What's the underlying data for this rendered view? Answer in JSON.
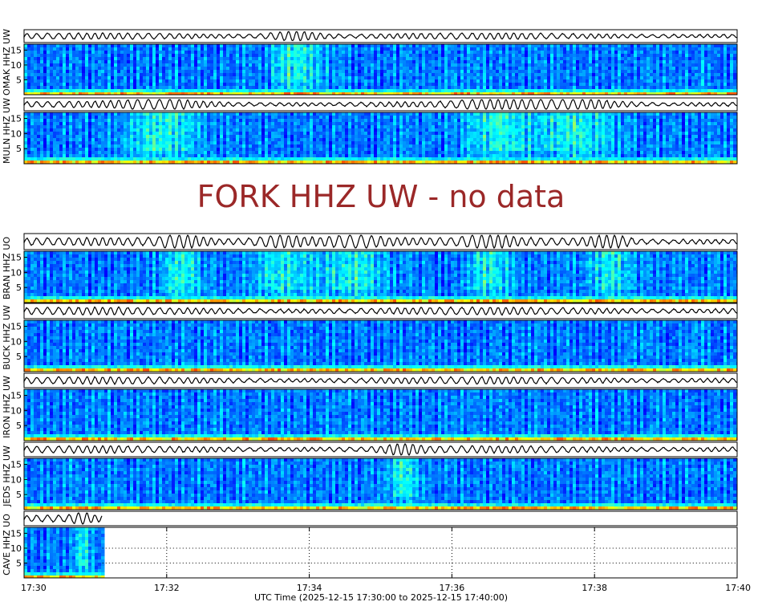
{
  "chart_data": {
    "type": "heatmap",
    "description_type": "spectrogram",
    "title": "",
    "xlabel": "UTC Time (2025-12-15 17:30:00 to 2025-12-15 17:40:00)",
    "x_ticks": [
      "17:30",
      "17:32",
      "17:34",
      "17:36",
      "17:38",
      "17:40"
    ],
    "xlim_minutes": [
      0,
      10
    ],
    "ylim_hz": [
      0,
      17
    ],
    "y_ticks": [
      "5",
      "10",
      "15"
    ],
    "colormap": "jet",
    "no_data_message": "FORK HHZ UW - no data",
    "no_data_color": "#9b2828",
    "panels": [
      {
        "station": "OMAK HHZ UW",
        "data_end_minutes": 10,
        "activity": [
          [
            3.8,
            0.5
          ]
        ]
      },
      {
        "station": "MULN HHZ UW",
        "data_end_minutes": 10,
        "activity": [
          [
            1.9,
            0.7
          ],
          [
            6.6,
            0.6
          ],
          [
            7.7,
            0.8
          ]
        ]
      },
      {
        "station": "FORK HHZ UW",
        "data_end_minutes": 0,
        "activity": []
      },
      {
        "station": "BRAN HHZ UO",
        "data_end_minutes": 10,
        "activity": [
          [
            2.2,
            0.4
          ],
          [
            3.6,
            0.5
          ],
          [
            4.6,
            0.6
          ],
          [
            6.5,
            0.4
          ],
          [
            8.2,
            0.4
          ]
        ]
      },
      {
        "station": "BUCK HHZ UW",
        "data_end_minutes": 10,
        "activity": []
      },
      {
        "station": "IRON HHZ UW",
        "data_end_minutes": 10,
        "activity": []
      },
      {
        "station": "JEDS HHZ UW",
        "data_end_minutes": 10,
        "activity": [
          [
            5.3,
            0.3
          ]
        ]
      },
      {
        "station": "CAVE HHZ UO",
        "data_end_minutes": 1.1,
        "activity": [
          [
            0.8,
            0.15
          ]
        ]
      }
    ]
  }
}
